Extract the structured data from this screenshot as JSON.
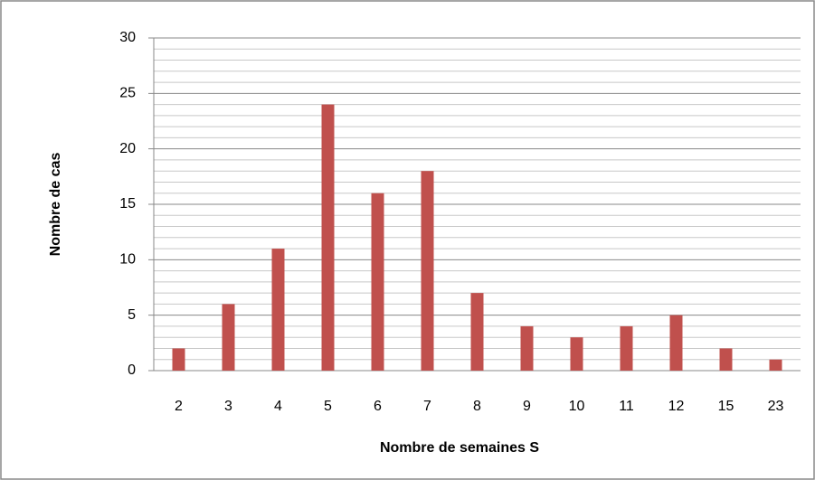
{
  "chart_data": {
    "type": "bar",
    "x_label": "Nombre de semaines S",
    "y_label": "Nombre de cas",
    "categories": [
      "2",
      "3",
      "4",
      "5",
      "6",
      "7",
      "8",
      "9",
      "10",
      "11",
      "12",
      "15",
      "23"
    ],
    "values": [
      2,
      6,
      11,
      24,
      16,
      18,
      7,
      4,
      3,
      4,
      5,
      2,
      1
    ],
    "color": "#c0504d",
    "ylim": [
      0,
      30
    ],
    "yticks": [
      0,
      5,
      10,
      15,
      20,
      25,
      30
    ],
    "minor_yticks": [
      1,
      2,
      3,
      4,
      6,
      7,
      8,
      9,
      11,
      12,
      13,
      14,
      16,
      17,
      18,
      19,
      21,
      22,
      23,
      24,
      26,
      27,
      28,
      29
    ],
    "grid": true
  }
}
